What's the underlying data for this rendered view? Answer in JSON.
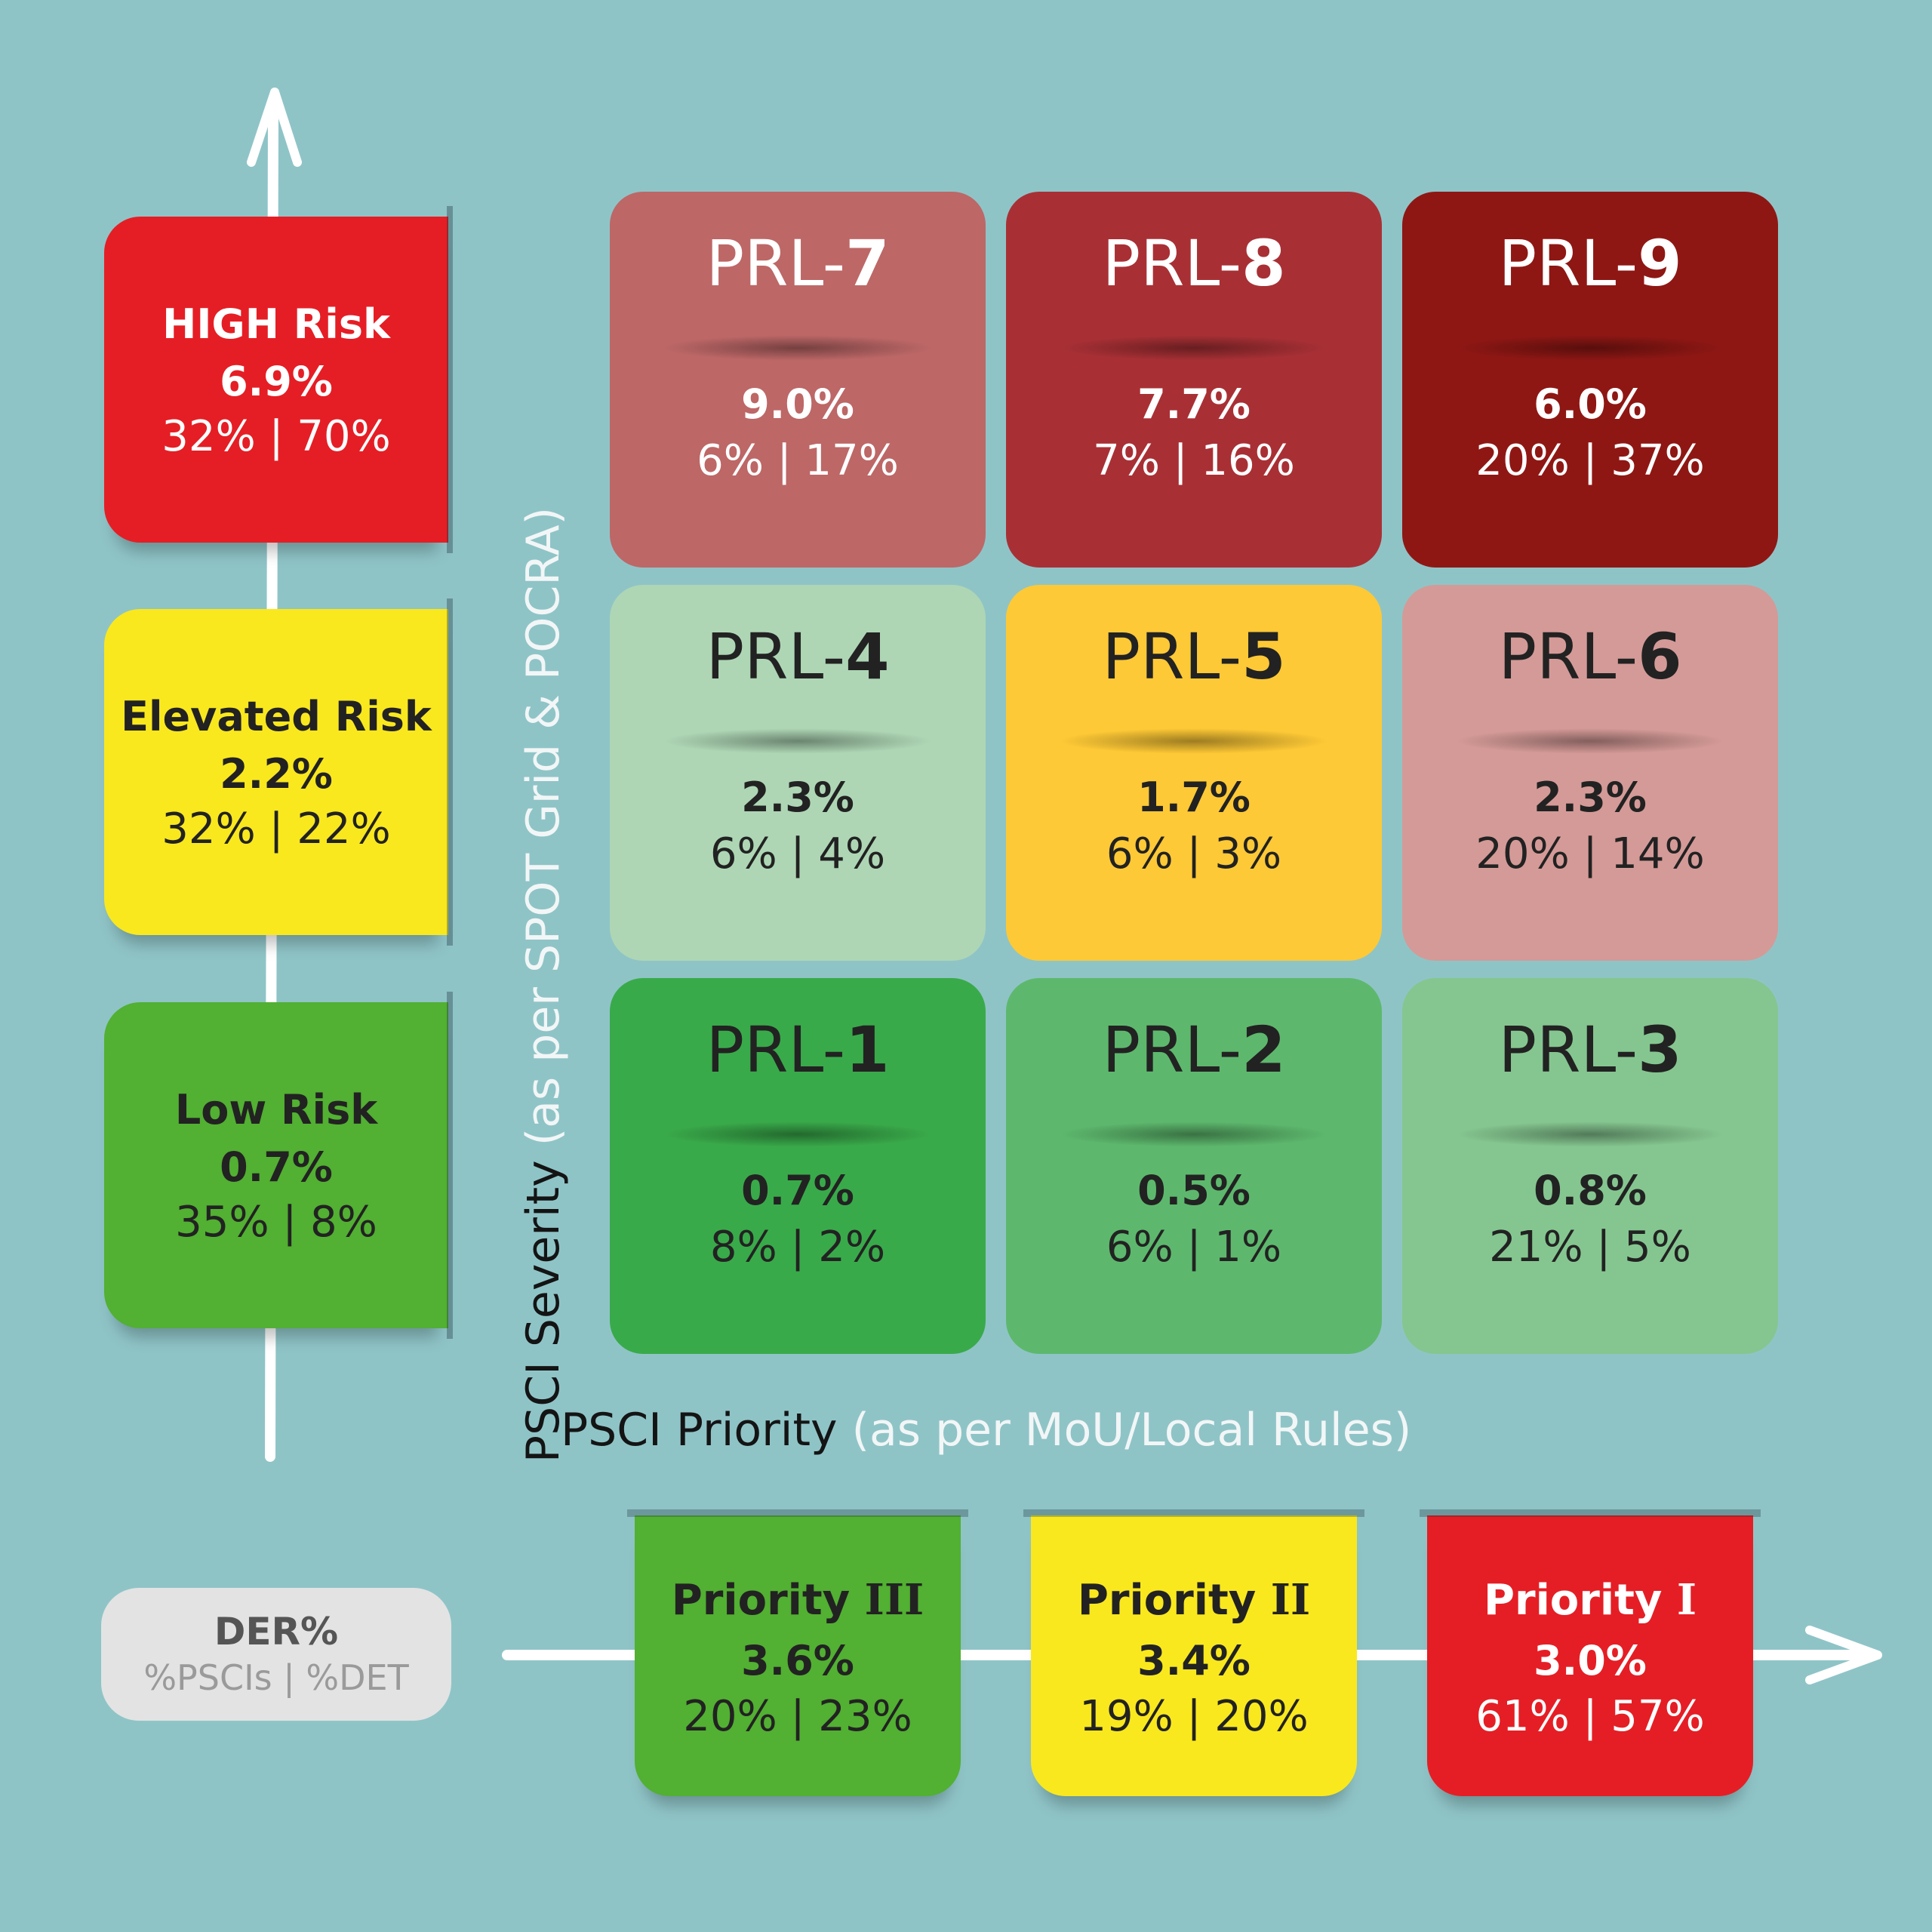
{
  "colors": {
    "background": "#8fc4c7",
    "risk_high": "#e51e25",
    "risk_elevated": "#f9e81e",
    "risk_low": "#52b032"
  },
  "axes": {
    "y_main": "PSCI Severity",
    "y_sub": "(as per SPOT Grid & POCRA)",
    "x_main": "PSCI Priority",
    "x_sub": "(as per MoU/Local Rules)"
  },
  "risk_levels": [
    {
      "title": "HIGH Risk",
      "der": "6.9%",
      "split": "32% | 70%",
      "color": "#e51e25",
      "text": "light"
    },
    {
      "title": "Elevated Risk",
      "der": "2.2%",
      "split": "32% | 22%",
      "color": "#f9e81e",
      "text": "dark"
    },
    {
      "title": "Low Risk",
      "der": "0.7%",
      "split": "35% | 8%",
      "color": "#52b032",
      "text": "dark"
    }
  ],
  "grid": [
    {
      "prefix": "PRL-",
      "num": "7",
      "der": "9.0%",
      "split": "6% | 17%",
      "color": "#bd6767",
      "text": "light"
    },
    {
      "prefix": "PRL-",
      "num": "8",
      "der": "7.7%",
      "split": "7% | 16%",
      "color": "#a83035",
      "text": "light"
    },
    {
      "prefix": "PRL-",
      "num": "9",
      "der": "6.0%",
      "split": "20% | 37%",
      "color": "#8e1714",
      "text": "light"
    },
    {
      "prefix": "PRL-",
      "num": "4",
      "der": "2.3%",
      "split": "6% | 4%",
      "color": "#aed6b5",
      "text": "dark"
    },
    {
      "prefix": "PRL-",
      "num": "5",
      "der": "1.7%",
      "split": "6% | 3%",
      "color": "#fec936",
      "text": "dark"
    },
    {
      "prefix": "PRL-",
      "num": "6",
      "der": "2.3%",
      "split": "20% | 14%",
      "color": "#d49a97",
      "text": "dark"
    },
    {
      "prefix": "PRL-",
      "num": "1",
      "der": "0.7%",
      "split": "8% | 2%",
      "color": "#39aa4a",
      "text": "dark"
    },
    {
      "prefix": "PRL-",
      "num": "2",
      "der": "0.5%",
      "split": "6% | 1%",
      "color": "#5db86d",
      "text": "dark"
    },
    {
      "prefix": "PRL-",
      "num": "3",
      "der": "0.8%",
      "split": "21% | 5%",
      "color": "#85c690",
      "text": "dark"
    }
  ],
  "priorities": [
    {
      "label": "Priority",
      "numeral": "III",
      "der": "3.6%",
      "split": "20% | 23%",
      "color": "#52b032",
      "text": "dark"
    },
    {
      "label": "Priority",
      "numeral": "II",
      "der": "3.4%",
      "split": "19% | 20%",
      "color": "#f9e81e",
      "text": "dark"
    },
    {
      "label": "Priority",
      "numeral": "I",
      "der": "3.0%",
      "split": "61% | 57%",
      "color": "#e51e25",
      "text": "light"
    }
  ],
  "legend": {
    "title": "DER%",
    "subtitle": "%PSCIs | %DET"
  }
}
